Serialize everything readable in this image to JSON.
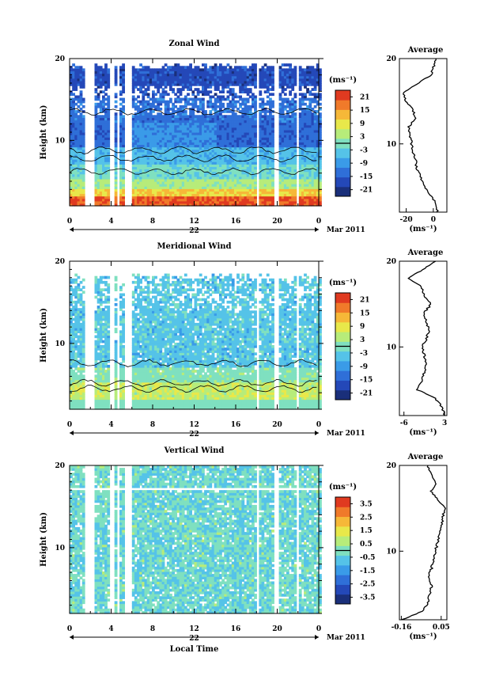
{
  "chart_data": [
    {
      "type": "heatmap",
      "title": "Zonal Wind",
      "ylabel": "Height (km)",
      "xlabel": "",
      "ylim": [
        2,
        20
      ],
      "xlim": [
        0,
        24
      ],
      "x_ticks": [
        "0",
        "4",
        "8",
        "12",
        "16",
        "20",
        "0"
      ],
      "y_ticks": [
        "20",
        "10"
      ],
      "date_day": "22",
      "month_label": "Mar 2011",
      "colorbar": {
        "unit": "(ms⁻¹)",
        "range": [
          -24,
          24
        ],
        "tick_labels": [
          "21",
          "15",
          "9",
          "3",
          "-3",
          "-9",
          "-15",
          "-21"
        ],
        "colors": [
          "#1a2f7a",
          "#2448b8",
          "#2f6fd8",
          "#3a9be8",
          "#55c3e8",
          "#7fe0c0",
          "#b7ec7a",
          "#e8e84a",
          "#f6b838",
          "#f07a2a",
          "#e03a20"
        ]
      },
      "profile": {
        "title": "Average",
        "xlabel": "(ms⁻¹)",
        "x_ticks": [
          "-20",
          "0"
        ],
        "xlim": [
          -25,
          10
        ],
        "height_km": [
          2,
          3,
          4,
          5,
          6,
          7,
          8,
          9,
          10,
          11,
          12,
          13,
          14,
          15,
          16,
          17,
          18,
          19,
          20
        ],
        "value": [
          3,
          2,
          -2,
          -6,
          -9,
          -12,
          -13,
          -15,
          -16,
          -17,
          -18,
          -13,
          -15,
          -20,
          -22,
          -12,
          -2,
          0,
          2
        ]
      }
    },
    {
      "type": "heatmap",
      "title": "Meridional Wind",
      "ylabel": "Height (km)",
      "xlabel": "",
      "ylim": [
        2,
        20
      ],
      "xlim": [
        0,
        24
      ],
      "x_ticks": [
        "0",
        "4",
        "8",
        "12",
        "16",
        "20",
        "0"
      ],
      "y_ticks": [
        "20",
        "10"
      ],
      "date_day": "22",
      "month_label": "Mar 2011",
      "colorbar": {
        "unit": "(ms⁻¹)",
        "range": [
          -24,
          24
        ],
        "tick_labels": [
          "21",
          "15",
          "9",
          "3",
          "-3",
          "-9",
          "-15",
          "-21"
        ],
        "colors": [
          "#1a2f7a",
          "#2448b8",
          "#2f6fd8",
          "#3a9be8",
          "#55c3e8",
          "#7fe0c0",
          "#b7ec7a",
          "#e8e84a",
          "#f6b838",
          "#f07a2a",
          "#e03a20"
        ]
      },
      "profile": {
        "title": "Average",
        "xlabel": "(ms⁻¹)",
        "x_ticks": [
          "-6",
          "3"
        ],
        "xlim": [
          -7,
          3.5
        ],
        "height_km": [
          2,
          3,
          4,
          5,
          6,
          7,
          8,
          9,
          10,
          11,
          12,
          13,
          14,
          15,
          16,
          17,
          18,
          19,
          20
        ],
        "value": [
          3,
          2.5,
          1,
          -3,
          -2,
          -1.5,
          -1,
          -1.5,
          -2,
          -1,
          -0.5,
          -1,
          -1.5,
          0,
          -1.5,
          -2,
          -5,
          -2,
          1
        ]
      }
    },
    {
      "type": "heatmap",
      "title": "Vertical Wind",
      "ylabel": "Height (km)",
      "xlabel": "Local Time",
      "ylim": [
        2,
        20
      ],
      "xlim": [
        0,
        24
      ],
      "x_ticks": [
        "0",
        "4",
        "8",
        "12",
        "16",
        "20",
        "0"
      ],
      "y_ticks": [
        "20",
        "10"
      ],
      "date_day": "22",
      "month_label": "Mar 2011",
      "colorbar": {
        "unit": "(ms⁻¹)",
        "range": [
          -4,
          4
        ],
        "tick_labels": [
          "3.5",
          "2.5",
          "1.5",
          "0.5",
          "-0.5",
          "-1.5",
          "-2.5",
          "-3.5"
        ],
        "colors": [
          "#1a2f7a",
          "#2448b8",
          "#2f6fd8",
          "#3a9be8",
          "#55c3e8",
          "#7fe0c0",
          "#b7ec7a",
          "#e8e84a",
          "#f6b838",
          "#f07a2a",
          "#e03a20"
        ]
      },
      "profile": {
        "title": "Average",
        "xlabel": "(ms⁻¹)",
        "x_ticks": [
          "-0.16",
          "0.05"
        ],
        "xlim": [
          -0.17,
          0.08
        ],
        "height_km": [
          2,
          3,
          4,
          5,
          6,
          7,
          8,
          9,
          10,
          11,
          12,
          13,
          14,
          15,
          16,
          17,
          18,
          19,
          20
        ],
        "value": [
          -0.16,
          -0.05,
          -0.02,
          -0.01,
          0.0,
          -0.02,
          0.0,
          0.01,
          0.02,
          0.03,
          0.04,
          0.05,
          0.06,
          0.07,
          0.03,
          0.0,
          0.02,
          0.0,
          -0.02
        ]
      }
    }
  ]
}
